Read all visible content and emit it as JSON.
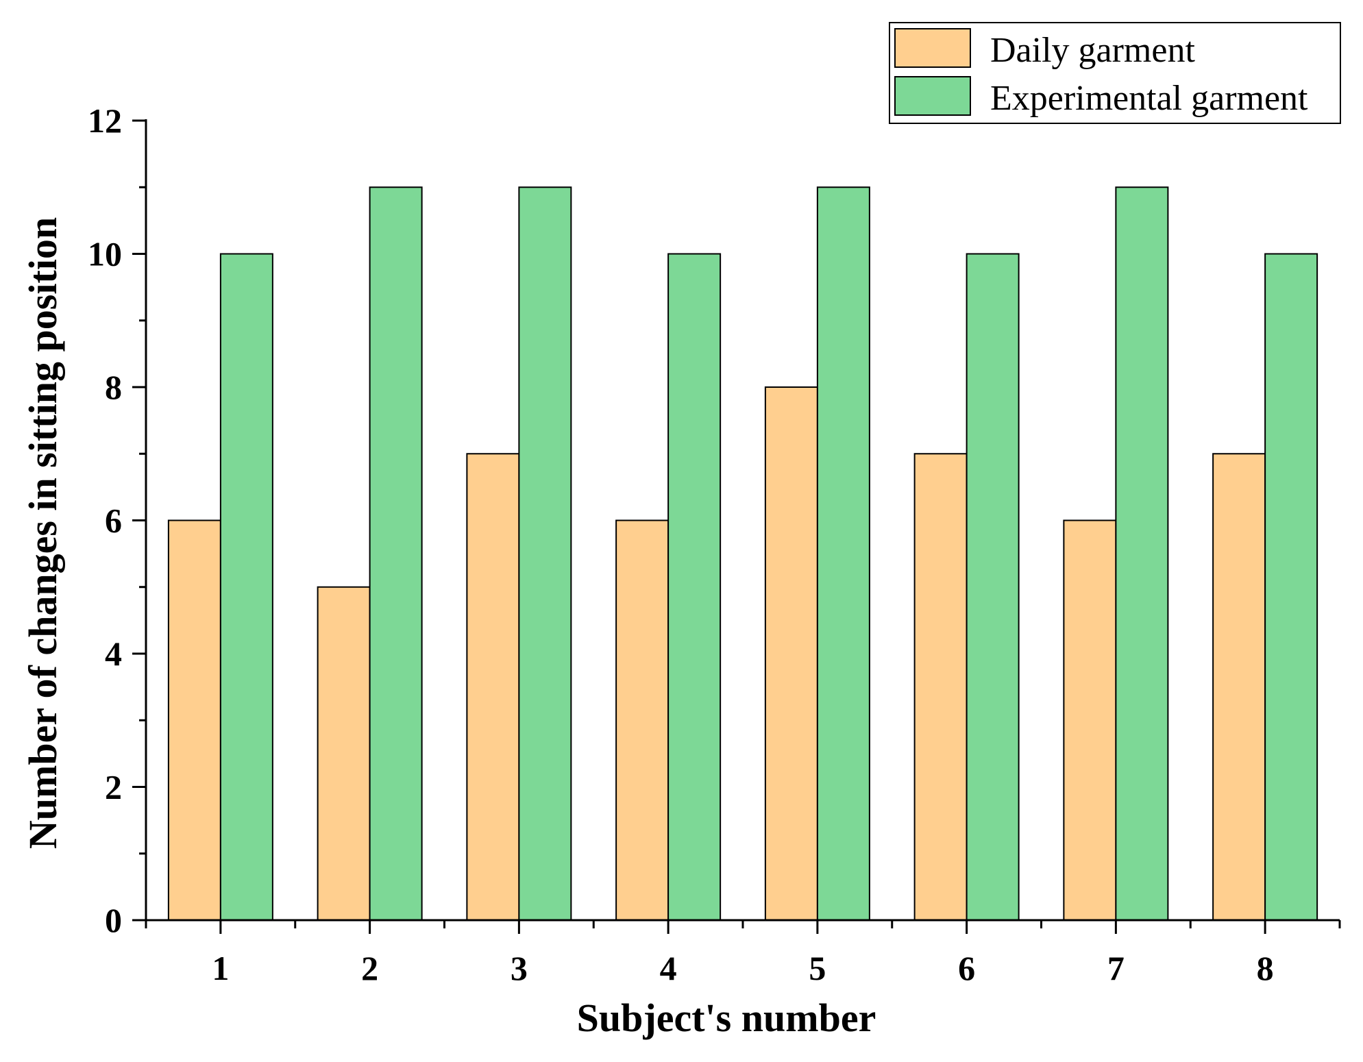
{
  "chart_data": {
    "type": "bar",
    "xlabel": "Subject's number",
    "ylabel": "Number of changes in sitting position",
    "ylim": [
      0,
      12
    ],
    "yticks": [
      "0",
      "2",
      "4",
      "6",
      "8",
      "10",
      "12"
    ],
    "categories": [
      "1",
      "2",
      "3",
      "4",
      "5",
      "6",
      "7",
      "8"
    ],
    "series": [
      {
        "name": "Daily garment",
        "color": "#FFCF8F",
        "values": [
          6,
          5,
          7,
          6,
          8,
          7,
          6,
          7
        ]
      },
      {
        "name": "Experimental garment",
        "color": "#7DD896",
        "values": [
          10,
          11,
          11,
          10,
          11,
          10,
          11,
          10
        ]
      }
    ],
    "legend_position": "top-right",
    "grid": false
  }
}
